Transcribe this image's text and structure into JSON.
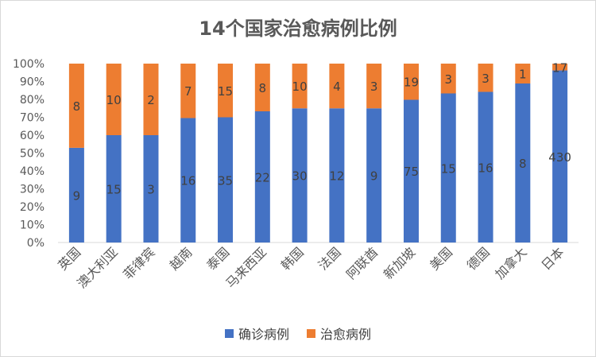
{
  "chart_data": {
    "type": "bar",
    "stacked": "percent",
    "title": "14个国家治愈病例比例",
    "categories": [
      "英国",
      "澳大利亚",
      "菲律宾",
      "越南",
      "泰国",
      "马来西亚",
      "韩国",
      "法国",
      "阿联酋",
      "新加坡",
      "美国",
      "德国",
      "加拿大",
      "日本"
    ],
    "series": [
      {
        "name": "确诊病例",
        "color": "#4472C4",
        "values": [
          9,
          15,
          3,
          16,
          35,
          22,
          30,
          12,
          9,
          75,
          15,
          16,
          8,
          430
        ]
      },
      {
        "name": "治愈病例",
        "color": "#ED7D31",
        "values": [
          8,
          10,
          2,
          7,
          15,
          8,
          10,
          4,
          3,
          19,
          3,
          3,
          1,
          17
        ]
      }
    ],
    "y_ticks": [
      "0%",
      "10%",
      "20%",
      "30%",
      "40%",
      "50%",
      "60%",
      "70%",
      "80%",
      "90%",
      "100%"
    ],
    "ylim": [
      0,
      100
    ],
    "grid": false,
    "legend_position": "bottom"
  }
}
